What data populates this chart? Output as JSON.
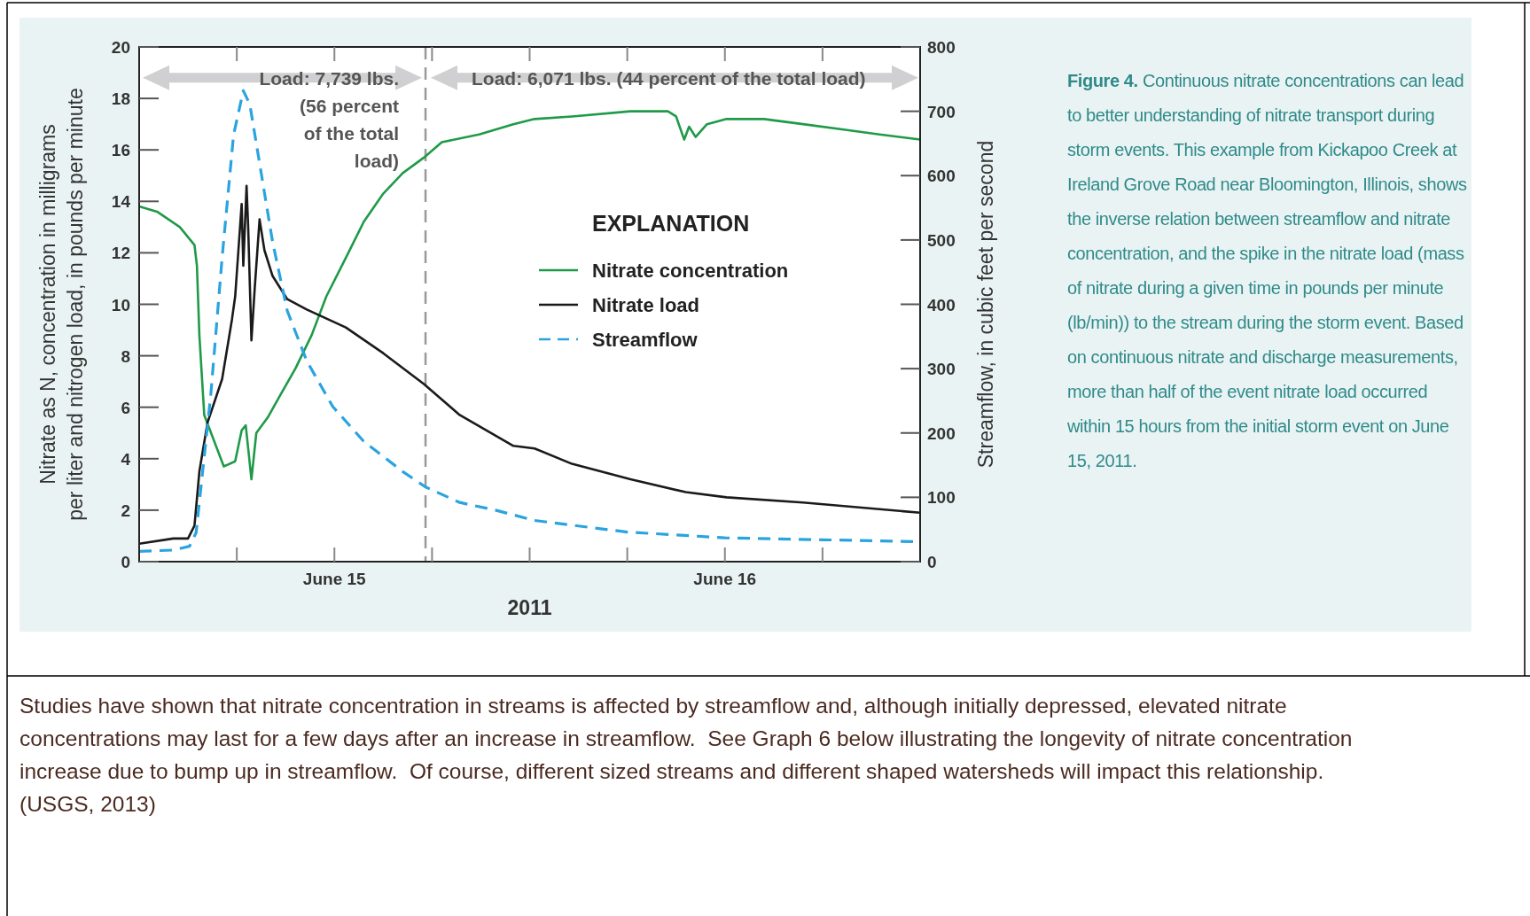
{
  "chart_data": {
    "type": "line",
    "xlabel": "2011",
    "ylabel": "Nitrate as N, concentration in milligrams\nper liter and nitrogen load, in pounds per minute",
    "y2label": "Streamflow, in cubic feet per second",
    "legend_title": "EXPLANATION",
    "legend": "center right",
    "xlim": [
      "2011-06-14T12:00",
      "2011-06-16T12:00"
    ],
    "xticks": [
      {
        "value": "2011-06-14T18:00",
        "label": null
      },
      {
        "value": "2011-06-15T00:00",
        "label": "June 15"
      },
      {
        "value": "2011-06-15T06:00",
        "label": null
      },
      {
        "value": "2011-06-15T12:00",
        "label": null
      },
      {
        "value": "2011-06-15T18:00",
        "label": null
      },
      {
        "value": "2011-06-16T00:00",
        "label": "June 16"
      },
      {
        "value": "2011-06-16T06:00",
        "label": null
      }
    ],
    "ylim": [
      0,
      20
    ],
    "yticks": [
      0,
      2,
      4,
      6,
      8,
      10,
      12,
      14,
      16,
      18,
      20
    ],
    "y2lim": [
      0,
      800
    ],
    "y2ticks": [
      0,
      100,
      200,
      300,
      400,
      500,
      600,
      700,
      800
    ],
    "ref_lines": [
      {
        "axis": "x",
        "value": "2011-06-15T05:36",
        "label": null,
        "color": "#999999",
        "line_style": "dashed"
      }
    ],
    "series": [
      {
        "name": "Nitrate concentration",
        "color": "#1f9a48",
        "line_style": "solid",
        "x": [
          "2011-06-14T12:00",
          "2011-06-14T13:06",
          "2011-06-14T14:30",
          "2011-06-14T15:24",
          "2011-06-14T15:33",
          "2011-06-14T15:42",
          "2011-06-14T16:00",
          "2011-06-14T17:12",
          "2011-06-14T17:54",
          "2011-06-14T18:18",
          "2011-06-14T18:33",
          "2011-06-14T18:54",
          "2011-06-14T19:12",
          "2011-06-14T19:54",
          "2011-06-14T20:42",
          "2011-06-14T21:36",
          "2011-06-14T22:36",
          "2011-06-14T23:30",
          "2011-06-15T00:42",
          "2011-06-15T01:48",
          "2011-06-15T03:00",
          "2011-06-15T04:12",
          "2011-06-15T05:30",
          "2011-06-15T06:36",
          "2011-06-15T08:54",
          "2011-06-15T11:00",
          "2011-06-15T12:18",
          "2011-06-15T14:36",
          "2011-06-15T18:12",
          "2011-06-15T20:30",
          "2011-06-15T21:00",
          "2011-06-15T21:30",
          "2011-06-15T21:48",
          "2011-06-15T22:12",
          "2011-06-15T22:54",
          "2011-06-16T00:06",
          "2011-06-16T02:24",
          "2011-06-16T04:48",
          "2011-06-16T07:12",
          "2011-06-16T09:30",
          "2011-06-16T12:00"
        ],
        "values": [
          13.8,
          13.6,
          13.0,
          12.3,
          11.5,
          8.8,
          5.7,
          3.7,
          3.9,
          5.1,
          5.3,
          3.2,
          5.0,
          5.6,
          6.5,
          7.5,
          8.8,
          10.3,
          11.8,
          13.2,
          14.3,
          15.1,
          15.7,
          16.3,
          16.6,
          17.0,
          17.2,
          17.3,
          17.5,
          17.5,
          17.3,
          16.4,
          16.9,
          16.5,
          17.0,
          17.2,
          17.2,
          17.0,
          16.8,
          16.6,
          16.4
        ]
      },
      {
        "name": "Nitrate load",
        "color": "#1a1a1a",
        "line_style": "solid",
        "x": [
          "2011-06-14T12:00",
          "2011-06-14T14:06",
          "2011-06-14T15:00",
          "2011-06-14T15:24",
          "2011-06-14T15:42",
          "2011-06-14T16:12",
          "2011-06-14T17:06",
          "2011-06-14T17:42",
          "2011-06-14T17:54",
          "2011-06-14T18:06",
          "2011-06-14T18:18",
          "2011-06-14T18:24",
          "2011-06-14T18:36",
          "2011-06-14T18:42",
          "2011-06-14T18:54",
          "2011-06-14T19:06",
          "2011-06-14T19:24",
          "2011-06-14T19:42",
          "2011-06-14T20:12",
          "2011-06-14T21:06",
          "2011-06-14T22:18",
          "2011-06-15T00:42",
          "2011-06-15T03:00",
          "2011-06-15T05:30",
          "2011-06-15T07:42",
          "2011-06-15T11:00",
          "2011-06-15T12:18",
          "2011-06-15T14:36",
          "2011-06-15T18:12",
          "2011-06-15T21:36",
          "2011-06-16T00:06",
          "2011-06-16T04:48",
          "2011-06-16T12:00"
        ],
        "values": [
          0.7,
          0.9,
          0.9,
          1.4,
          3.5,
          5.4,
          7.1,
          9.4,
          10.3,
          12.1,
          13.9,
          11.5,
          14.6,
          13.0,
          8.6,
          10.6,
          13.3,
          12.1,
          11.1,
          10.2,
          9.8,
          9.1,
          8.1,
          6.9,
          5.7,
          4.5,
          4.4,
          3.8,
          3.2,
          2.7,
          2.5,
          2.3,
          1.9
        ]
      },
      {
        "name": "Streamflow",
        "color": "#2aa3df",
        "line_style": "dashed",
        "axis": "y2",
        "x": [
          "2011-06-14T12:00",
          "2011-06-14T14:06",
          "2011-06-14T15:06",
          "2011-06-14T15:30",
          "2011-06-14T15:48",
          "2011-06-14T16:24",
          "2011-06-14T17:06",
          "2011-06-14T17:48",
          "2011-06-14T18:24",
          "2011-06-14T18:48",
          "2011-06-14T19:30",
          "2011-06-14T20:12",
          "2011-06-14T21:06",
          "2011-06-14T22:18",
          "2011-06-14T23:54",
          "2011-06-15T01:48",
          "2011-06-15T04:12",
          "2011-06-15T05:36",
          "2011-06-15T07:42",
          "2011-06-15T09:54",
          "2011-06-15T12:18",
          "2011-06-15T18:00",
          "2011-06-16T00:00",
          "2011-06-16T06:00",
          "2011-06-16T12:00"
        ],
        "values": [
          16,
          18,
          24,
          45,
          116,
          259,
          473,
          663,
          732,
          711,
          604,
          497,
          390,
          312,
          241,
          187,
          140,
          116,
          92,
          80,
          64,
          46,
          37,
          34,
          31
        ]
      }
    ],
    "annotations": [
      "Load: 7,739 lbs.\n(56 percent\nof the total\nload)",
      "Load: 6,071 lbs. (44 percent of the total load)",
      "Figure 4. Continuous nitrate concentrations can lead to better understanding of nitrate transport during storm events. This example from Kickapoo Creek at Ireland Grove Road near Bloomington, Illinois, shows the inverse relation between streamflow and nitrate concentration, and the spike in the nitrate load (mass of nitrate during a given time in pounds per minute (lb/min)) to the stream during the storm event. Based on continuous nitrate and discharge measurements, more than half of the event nitrate load occurred within 15 hours from the initial storm event on June 15, 2011.",
      "Studies have shown that nitrate concentration in streams is affected by streamflow and, although initially depressed, elevated nitrate concentrations may last for a few days after an increase in streamflow.  See Graph 6 below illustrating the longevity of nitrate concentration increase due to bump up in streamflow.  Of course, different sized streams and different shaped watersheds will impact this relationship. (USGS, 2013)"
    ]
  }
}
